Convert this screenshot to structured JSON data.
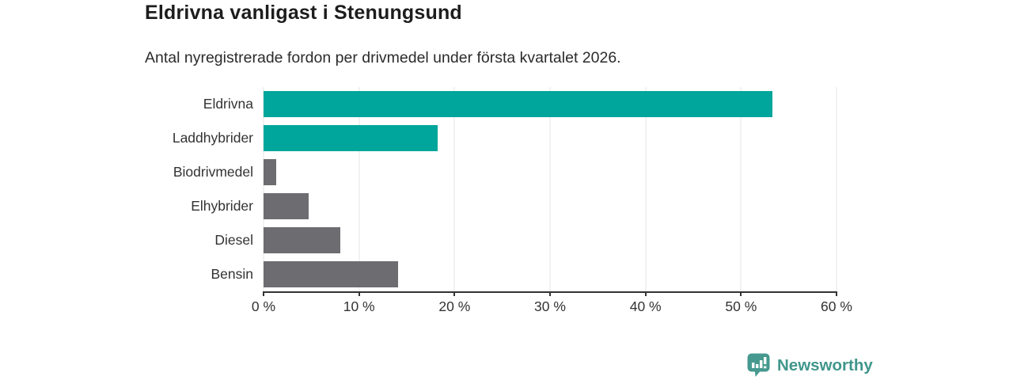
{
  "header": {
    "title": "Eldrivna vanligast i Stenungsund",
    "subtitle": "Antal nyregistrerade fordon per drivmedel under första kvartalet 2026."
  },
  "chart_data": {
    "type": "bar",
    "orientation": "horizontal",
    "categories": [
      "Eldrivna",
      "Laddhybrider",
      "Biodrivmedel",
      "Elhybrider",
      "Diesel",
      "Bensin"
    ],
    "values": [
      53.3,
      18.2,
      1.3,
      4.7,
      8.0,
      14.1
    ],
    "unit": "%",
    "title": "Eldrivna vanligast i Stenungsund",
    "subtitle": "Antal nyregistrerade fordon per drivmedel under första kvartalet 2026.",
    "xlabel": "",
    "ylabel": "",
    "xlim": [
      0,
      60
    ],
    "xtick_values": [
      0,
      10,
      20,
      30,
      40,
      50,
      60
    ],
    "xtick_labels": [
      "0 %",
      "10 %",
      "20 %",
      "30 %",
      "40 %",
      "50 %",
      "60 %"
    ],
    "grid": "vertical",
    "legend": "none",
    "bar_colors": [
      "#00a69b",
      "#00a69b",
      "#6d6d71",
      "#6d6d71",
      "#6d6d71",
      "#6d6d71"
    ],
    "highlight_color": "#00a69b",
    "default_color": "#6d6d71",
    "gridline_color": "#e4e4e4",
    "axis_color": "#333333"
  },
  "footer": {
    "brand": "Newsworthy",
    "brand_color": "#40968c",
    "logo_icon": "bar-chart-speech-bubble-icon"
  }
}
